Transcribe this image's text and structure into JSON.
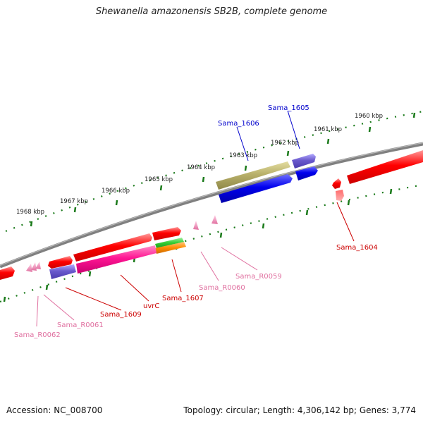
{
  "title": "Shewanella amazonensis SB2B, complete genome",
  "footer": {
    "accession": "Accession: NC_008700",
    "topology": "Topology: circular; Length: 4,306,142 bp; Genes: 3,774"
  },
  "scale_labels": [
    "1960 kbp",
    "1961 kbp",
    "1962 kbp",
    "1963 kbp",
    "1964 kbp",
    "1965 kbp",
    "1966 kbp",
    "1967 kbp",
    "1968 kbp"
  ],
  "gene_labels": {
    "sama_1605": "Sama_1605",
    "sama_1606": "Sama_1606",
    "sama_1604": "Sama_1604",
    "sama_r0059": "Sama_R0059",
    "sama_r0060": "Sama_R0060",
    "sama_1607": "Sama_1607",
    "uvrc": "uvrC",
    "sama_1609": "Sama_1609",
    "sama_r0061": "Sama_R0061",
    "sama_r0062": "Sama_R0062"
  },
  "colors": {
    "backbone": "#808080",
    "scale_ticks": "#1a7a1a",
    "protein_red": "#ff0000",
    "blue": "#0000ee",
    "slate_blue": "#6a5acd",
    "olive": "#b8b06a",
    "magenta": "#ff1493",
    "green": "#33cc33",
    "orange": "#ff8c00",
    "pink_rna": "#f080b0",
    "label_blue": "#0000cc",
    "label_red": "#cc0000",
    "label_pink": "#e070a0"
  }
}
